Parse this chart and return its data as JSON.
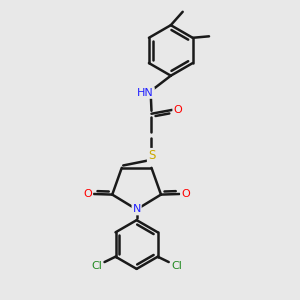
{
  "background_color": "#e8e8e8",
  "bond_color": "#1a1a1a",
  "bond_width": 1.8,
  "figsize": [
    3.0,
    3.0
  ],
  "dpi": 100,
  "atom_colors": {
    "N": "#2020ff",
    "O": "#ff0000",
    "S": "#ccaa00",
    "Cl": "#228b22",
    "C": "#1a1a1a"
  },
  "font_size": 8.0
}
